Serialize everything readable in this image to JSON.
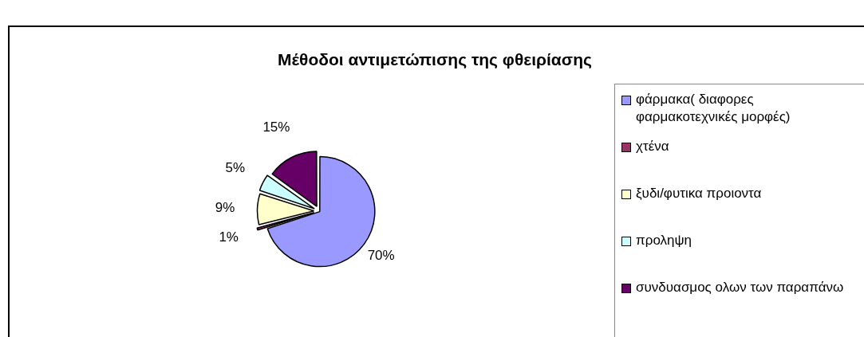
{
  "chart_data": {
    "type": "pie",
    "title": "Μέθοδοι αντιμετώπισης της φθειρίασης",
    "categories": [
      "φάρμακα( διαφορες φαρμακοτεχνικές μορφές)",
      "χτένα",
      "ξυδι/φυτικα προιοντα",
      "προληψη",
      "συνδυασμος ολων των παραπάνω"
    ],
    "values": [
      70,
      1,
      9,
      5,
      15
    ],
    "colors": [
      "#9999ff",
      "#993366",
      "#ffffcc",
      "#ccffff",
      "#660066"
    ],
    "value_labels": [
      "70%",
      "1%",
      "9%",
      "5%",
      "15%"
    ],
    "legend": "right"
  }
}
